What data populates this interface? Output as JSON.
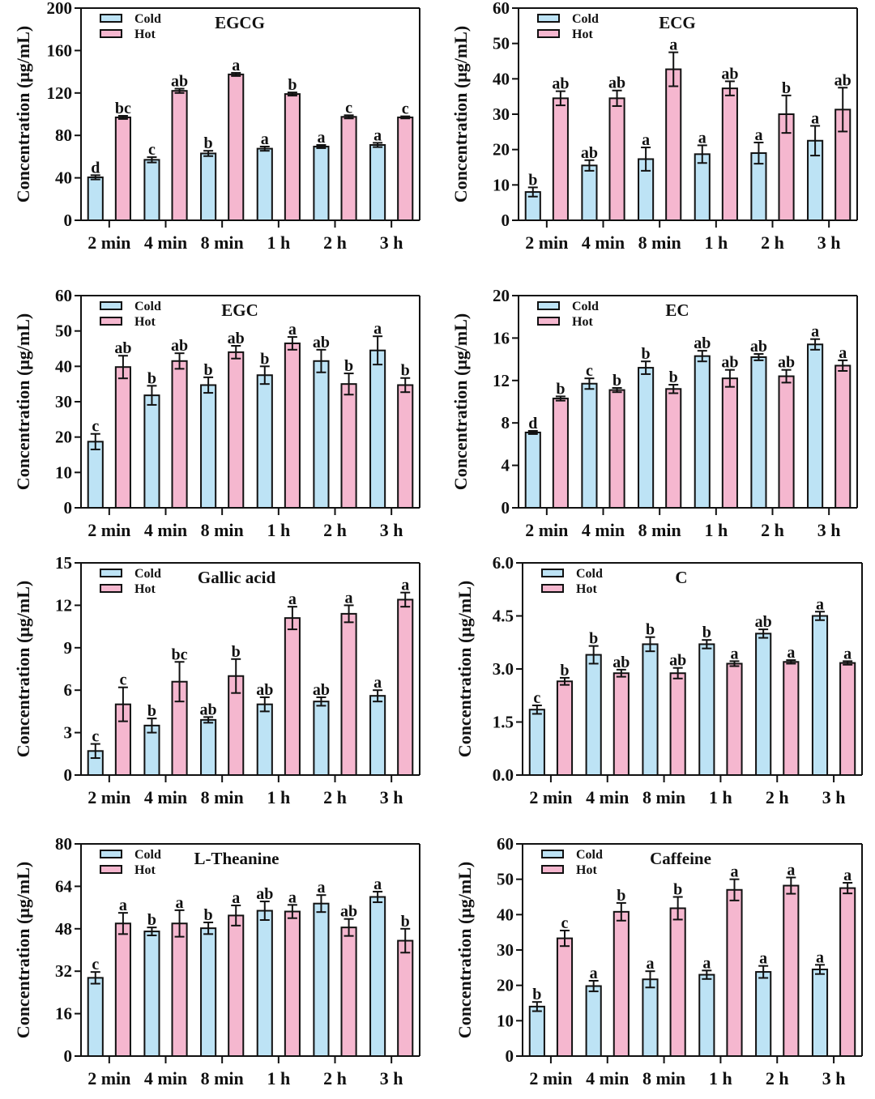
{
  "figure": {
    "legend_labels": [
      "Cold",
      "Hot"
    ],
    "colors": {
      "Cold": "#bde3f5",
      "Hot": "#f5b7cf",
      "frame": "#111111"
    },
    "ylabel": "Concentration (μg/mL)"
  },
  "chart_data": [
    {
      "type": "bar",
      "title": "EGCG",
      "xlabel": "",
      "ylabel": "Concentration (μg/mL)",
      "categories": [
        "2 min",
        "4 min",
        "8 min",
        "1 h",
        "2 h",
        "3 h"
      ],
      "ylim": [
        0,
        200
      ],
      "yticks": [
        "0",
        "40",
        "80",
        "120",
        "160",
        "200"
      ],
      "grid": false,
      "legend": "top-left",
      "series": [
        {
          "name": "Cold",
          "values": [
            40.5,
            57,
            63,
            67.5,
            69.5,
            71
          ],
          "errors": [
            2,
            2.5,
            2.5,
            2,
            1.5,
            2
          ],
          "letters": [
            "d",
            "c",
            "b",
            "a",
            "a",
            "a"
          ]
        },
        {
          "name": "Hot",
          "values": [
            97,
            122,
            137.5,
            119,
            97.5,
            97
          ],
          "errors": [
            1.5,
            2,
            1.5,
            1.5,
            1.5,
            1
          ],
          "letters": [
            "bc",
            "ab",
            "a",
            "b",
            "c",
            "c"
          ]
        }
      ]
    },
    {
      "type": "bar",
      "title": "ECG",
      "xlabel": "",
      "ylabel": "Concentration (μg/mL)",
      "categories": [
        "2 min",
        "4 min",
        "8 min",
        "1 h",
        "2 h",
        "3 h"
      ],
      "ylim": [
        0,
        60
      ],
      "yticks": [
        "0",
        "10",
        "20",
        "30",
        "40",
        "50",
        "60"
      ],
      "grid": false,
      "legend": "top-left",
      "series": [
        {
          "name": "Cold",
          "values": [
            8,
            15.5,
            17.3,
            18.7,
            19,
            22.5
          ],
          "errors": [
            1.3,
            1.5,
            3.3,
            2.5,
            3,
            4.2
          ],
          "letters": [
            "b",
            "ab",
            "a",
            "a",
            "a",
            "a"
          ]
        },
        {
          "name": "Hot",
          "values": [
            34.5,
            34.5,
            42.7,
            37.3,
            30,
            31.3
          ],
          "errors": [
            2,
            2.2,
            4.8,
            2,
            5.3,
            6.2
          ],
          "letters": [
            "ab",
            "ab",
            "a",
            "ab",
            "b",
            "ab"
          ]
        }
      ]
    },
    {
      "type": "bar",
      "title": "EGC",
      "xlabel": "",
      "ylabel": "Concentration (μg/mL)",
      "categories": [
        "2 min",
        "4 min",
        "8 min",
        "1 h",
        "2 h",
        "3 h"
      ],
      "ylim": [
        0,
        60
      ],
      "yticks": [
        "0",
        "10",
        "20",
        "30",
        "40",
        "50",
        "60"
      ],
      "grid": false,
      "legend": "top-left",
      "series": [
        {
          "name": "Cold",
          "values": [
            18.7,
            31.8,
            34.7,
            37.5,
            41.5,
            44.5
          ],
          "errors": [
            2.2,
            2.7,
            2.2,
            2.5,
            3.2,
            4
          ],
          "letters": [
            "c",
            "b",
            "b",
            "b",
            "ab",
            "a"
          ]
        },
        {
          "name": "Hot",
          "values": [
            39.8,
            41.5,
            44,
            46.5,
            35,
            34.7
          ],
          "errors": [
            3.2,
            2.2,
            1.8,
            1.8,
            3,
            2
          ],
          "letters": [
            "ab",
            "ab",
            "ab",
            "a",
            "b",
            "b"
          ]
        }
      ]
    },
    {
      "type": "bar",
      "title": "EC",
      "xlabel": "",
      "ylabel": "Concentration (μg/mL)",
      "categories": [
        "2 min",
        "4 min",
        "8 min",
        "1 h",
        "2 h",
        "3 h"
      ],
      "ylim": [
        0,
        20
      ],
      "yticks": [
        "0",
        "4",
        "8",
        "12",
        "16",
        "20"
      ],
      "grid": false,
      "legend": "top-left",
      "series": [
        {
          "name": "Cold",
          "values": [
            7.1,
            11.7,
            13.2,
            14.3,
            14.2,
            15.4
          ],
          "errors": [
            0.15,
            0.5,
            0.6,
            0.5,
            0.3,
            0.5
          ],
          "letters": [
            "d",
            "c",
            "b",
            "ab",
            "ab",
            "a"
          ]
        },
        {
          "name": "Hot",
          "values": [
            10.3,
            11.1,
            11.2,
            12.2,
            12.4,
            13.4
          ],
          "errors": [
            0.2,
            0.2,
            0.4,
            0.8,
            0.6,
            0.5
          ],
          "letters": [
            "b",
            "b",
            "b",
            "ab",
            "ab",
            "a"
          ]
        }
      ]
    },
    {
      "type": "bar",
      "title": "Gallic acid",
      "xlabel": "",
      "ylabel": "Concentration (μg/mL)",
      "categories": [
        "2 min",
        "4 min",
        "8 min",
        "1 h",
        "2 h",
        "3 h"
      ],
      "ylim": [
        0,
        15
      ],
      "yticks": [
        "0",
        "3",
        "6",
        "9",
        "12",
        "15"
      ],
      "grid": false,
      "legend": "top-left",
      "series": [
        {
          "name": "Cold",
          "values": [
            1.7,
            3.5,
            3.9,
            5,
            5.2,
            5.6
          ],
          "errors": [
            0.5,
            0.5,
            0.2,
            0.5,
            0.3,
            0.4
          ],
          "letters": [
            "c",
            "b",
            "ab",
            "ab",
            "ab",
            "a"
          ]
        },
        {
          "name": "Hot",
          "values": [
            5,
            6.6,
            7,
            11.1,
            11.4,
            12.4
          ],
          "errors": [
            1.2,
            1.4,
            1.2,
            0.8,
            0.6,
            0.5
          ],
          "letters": [
            "c",
            "bc",
            "b",
            "a",
            "a",
            "a"
          ]
        }
      ]
    },
    {
      "type": "bar",
      "title": "C",
      "xlabel": "",
      "ylabel": "Concentration (μg/mL)",
      "categories": [
        "2 min",
        "4 min",
        "8 min",
        "1 h",
        "2 h",
        "3 h"
      ],
      "ylim": [
        0,
        6
      ],
      "yticks": [
        "0.0",
        "1.5",
        "3.0",
        "4.5",
        "6.0"
      ],
      "grid": false,
      "legend": "top-left",
      "series": [
        {
          "name": "Cold",
          "values": [
            1.85,
            3.4,
            3.7,
            3.7,
            4,
            4.5
          ],
          "errors": [
            0.12,
            0.25,
            0.2,
            0.12,
            0.12,
            0.12
          ],
          "letters": [
            "c",
            "b",
            "b",
            "b",
            "ab",
            "a"
          ]
        },
        {
          "name": "Hot",
          "values": [
            2.65,
            2.88,
            2.88,
            3.15,
            3.2,
            3.17
          ],
          "errors": [
            0.1,
            0.1,
            0.15,
            0.07,
            0.05,
            0.05
          ],
          "letters": [
            "b",
            "ab",
            "ab",
            "a",
            "a",
            "a"
          ]
        }
      ]
    },
    {
      "type": "bar",
      "title": "L-Theanine",
      "xlabel": "",
      "ylabel": "Concentration (μg/mL)",
      "categories": [
        "2 min",
        "4 min",
        "8 min",
        "1 h",
        "2 h",
        "3 h"
      ],
      "ylim": [
        0,
        80
      ],
      "yticks": [
        "0",
        "16",
        "32",
        "48",
        "64",
        "80"
      ],
      "grid": false,
      "legend": "top-left",
      "series": [
        {
          "name": "Cold",
          "values": [
            29.5,
            47,
            48.2,
            54.8,
            57.5,
            60
          ],
          "errors": [
            2.2,
            1.5,
            2.2,
            3.5,
            3.2,
            2
          ],
          "letters": [
            "c",
            "b",
            "b",
            "ab",
            "a",
            "a"
          ]
        },
        {
          "name": "Hot",
          "values": [
            50,
            50,
            53,
            54.5,
            48.5,
            43.5
          ],
          "errors": [
            4,
            5,
            3.8,
            2.5,
            3.2,
            4.5
          ],
          "letters": [
            "a",
            "a",
            "a",
            "a",
            "ab",
            "b"
          ]
        }
      ]
    },
    {
      "type": "bar",
      "title": "Caffeine",
      "xlabel": "",
      "ylabel": "Concentration (μg/mL)",
      "categories": [
        "2 min",
        "4 min",
        "8 min",
        "1 h",
        "2 h",
        "3 h"
      ],
      "ylim": [
        0,
        60
      ],
      "yticks": [
        "0",
        "10",
        "20",
        "30",
        "40",
        "50",
        "60"
      ],
      "grid": false,
      "legend": "top-left",
      "series": [
        {
          "name": "Cold",
          "values": [
            14,
            19.8,
            21.7,
            23,
            23.8,
            24.5
          ],
          "errors": [
            1.3,
            1.5,
            2.3,
            1.2,
            1.7,
            1.3
          ],
          "letters": [
            "b",
            "a",
            "a",
            "a",
            "a",
            "a"
          ]
        },
        {
          "name": "Hot",
          "values": [
            33.3,
            40.8,
            41.8,
            47,
            48.2,
            47.5
          ],
          "errors": [
            2.2,
            2.5,
            3.2,
            3,
            2.3,
            1.5
          ],
          "letters": [
            "c",
            "b",
            "b",
            "a",
            "a",
            "a"
          ]
        }
      ]
    }
  ]
}
